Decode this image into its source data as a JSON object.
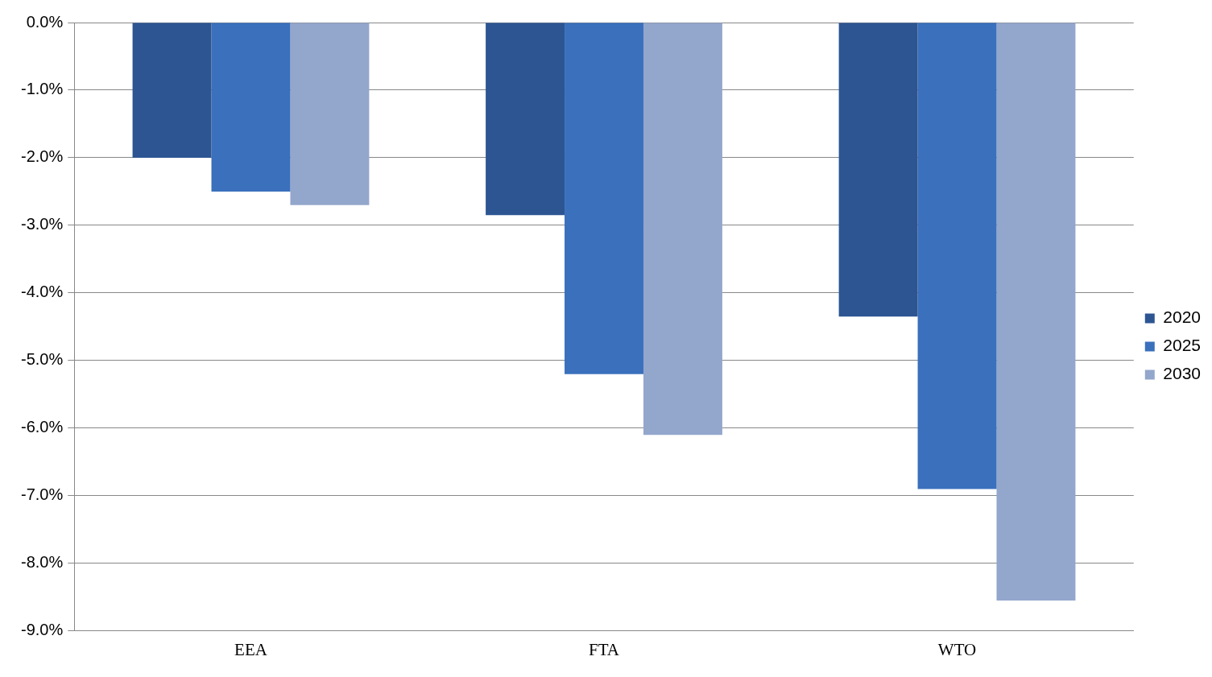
{
  "chart_data": {
    "type": "bar",
    "categories": [
      "EEA",
      "FTA",
      "WTO"
    ],
    "series": [
      {
        "name": "2020",
        "color": "#2c5592",
        "values": [
          -2.0,
          -2.85,
          -4.35
        ]
      },
      {
        "name": "2025",
        "color": "#3a70bc",
        "values": [
          -2.5,
          -5.2,
          -6.9
        ]
      },
      {
        "name": "2030",
        "color": "#93a6cc",
        "values": [
          -2.7,
          -6.1,
          -8.55
        ]
      }
    ],
    "ylim": [
      -9,
      0
    ],
    "yticks": [
      {
        "value": 0,
        "label": "0.0%"
      },
      {
        "value": -1,
        "label": "-1.0%"
      },
      {
        "value": -2,
        "label": "-2.0%"
      },
      {
        "value": -3,
        "label": "-3.0%"
      },
      {
        "value": -4,
        "label": "-4.0%"
      },
      {
        "value": -5,
        "label": "-5.0%"
      },
      {
        "value": -6,
        "label": "-6.0%"
      },
      {
        "value": -7,
        "label": "-7.0%"
      },
      {
        "value": -8,
        "label": "-8.0%"
      },
      {
        "value": -9,
        "label": "-9.0%"
      }
    ],
    "grid": "y",
    "legend": "right"
  }
}
